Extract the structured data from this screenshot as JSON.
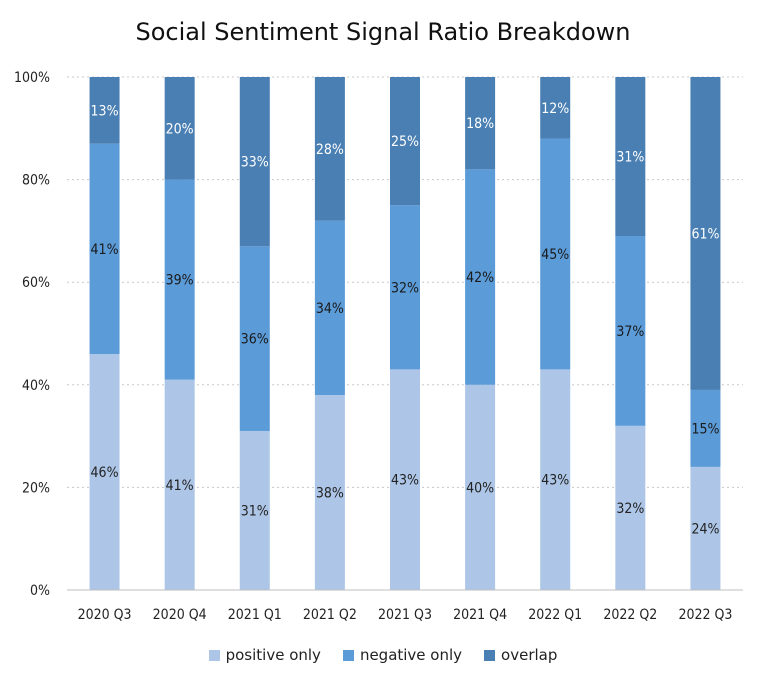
{
  "chart_data": {
    "type": "bar",
    "stacked": true,
    "title": "Social Sentiment Signal Ratio Breakdown",
    "xlabel": "",
    "ylabel": "",
    "categories": [
      "2020 Q3",
      "2020 Q4",
      "2021 Q1",
      "2021 Q2",
      "2021 Q3",
      "2021 Q4",
      "2022 Q1",
      "2022 Q2",
      "2022 Q3"
    ],
    "series": [
      {
        "name": "positive only",
        "color": "#adc6e7",
        "label_color": "#222222",
        "values": [
          46,
          41,
          31,
          38,
          43,
          40,
          43,
          32,
          24
        ]
      },
      {
        "name": "negative only",
        "color": "#5b9bd8",
        "label_color": "#1a1a1a",
        "values": [
          41,
          39,
          36,
          34,
          32,
          42,
          45,
          37,
          15
        ]
      },
      {
        "name": "overlap",
        "color": "#4a7fb3",
        "label_color": "#ffffff",
        "values": [
          13,
          20,
          33,
          28,
          25,
          18,
          12,
          31,
          61
        ]
      }
    ],
    "yticks": [
      "0%",
      "20%",
      "40%",
      "60%",
      "80%",
      "100%"
    ],
    "ylim": [
      0,
      100
    ],
    "grid": true,
    "legend_position": "bottom"
  }
}
